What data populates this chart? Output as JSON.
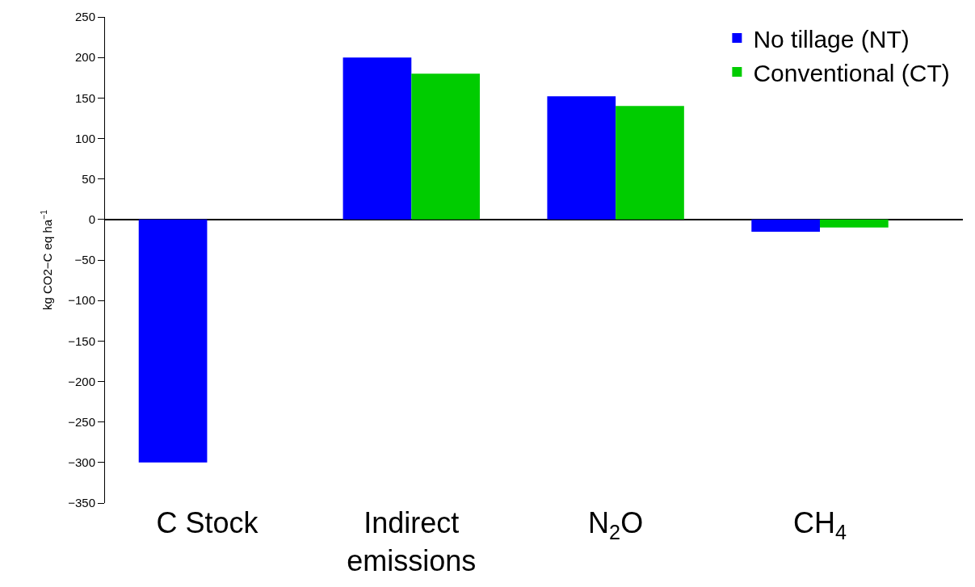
{
  "chart_data": {
    "type": "bar",
    "ylabel": "kg CO2−C eq ha$^{−1}$",
    "categories": [
      "C Stock",
      "Indirect\nemissions",
      "N$_{2}$O",
      "CH$_{4}$"
    ],
    "series": [
      {
        "name": "No tillage (NT)",
        "color": "#0000ff",
        "values": [
          -300,
          200,
          152,
          -15
        ]
      },
      {
        "name": "Conventional (CT)",
        "color": "#00cc00",
        "values": [
          null,
          180,
          140,
          -10
        ]
      }
    ],
    "ylim": [
      -350,
      250
    ],
    "yticks": [
      {
        "value": -350,
        "label": "−350"
      },
      {
        "value": -300,
        "label": "−300"
      },
      {
        "value": -250,
        "label": "−250"
      },
      {
        "value": -200,
        "label": "−200"
      },
      {
        "value": -150,
        "label": "−150"
      },
      {
        "value": -100,
        "label": "−100"
      },
      {
        "value": -50,
        "label": "−50"
      },
      0,
      50,
      100,
      150,
      200,
      250
    ],
    "legend": "top right"
  }
}
